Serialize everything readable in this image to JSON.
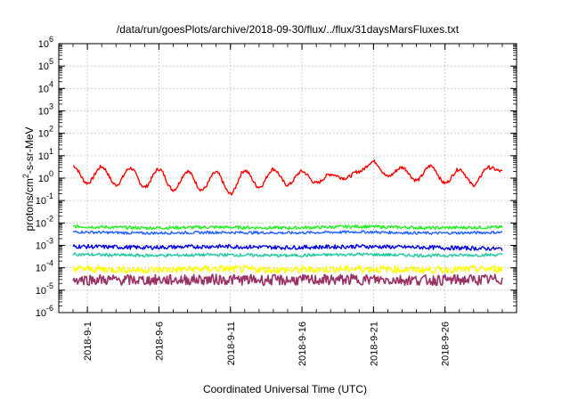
{
  "chart_data": {
    "type": "line",
    "title": "/data/run/goesPlots/archive/2018-09-30/flux/../flux/31daysMarsFluxes.txt",
    "xlabel": "Coordinated Universal Time (UTC)",
    "ylabel": "protons/cm²-s-sr-MeV",
    "ylabel_parts": {
      "pre": "protons/cm",
      "sup": "2",
      "post": "-s-sr-MeV"
    },
    "y_scale": "log",
    "ylim": [
      1e-06,
      1000000.0
    ],
    "y_ticks": [
      {
        "base": "10",
        "exp": "-6",
        "value": 1e-06
      },
      {
        "base": "10",
        "exp": "-5",
        "value": 1e-05
      },
      {
        "base": "10",
        "exp": "-4",
        "value": 0.0001
      },
      {
        "base": "10",
        "exp": "-3",
        "value": 0.001
      },
      {
        "base": "10",
        "exp": "-2",
        "value": 0.01
      },
      {
        "base": "10",
        "exp": "-1",
        "value": 0.1
      },
      {
        "base": "10",
        "exp": "0",
        "value": 1
      },
      {
        "base": "10",
        "exp": "1",
        "value": 10
      },
      {
        "base": "10",
        "exp": "2",
        "value": 100
      },
      {
        "base": "10",
        "exp": "3",
        "value": 1000
      },
      {
        "base": "10",
        "exp": "4",
        "value": 10000
      },
      {
        "base": "10",
        "exp": "5",
        "value": 100000
      },
      {
        "base": "10",
        "exp": "6",
        "value": 1000000
      }
    ],
    "xlim": [
      "2018-08-30",
      "2018-10-01"
    ],
    "x_ticks": [
      "2018-9-1",
      "2018-9-6",
      "2018-9-11",
      "2018-9-16",
      "2018-9-21",
      "2018-9-26"
    ],
    "x_tick_dates": [
      "2018-09-01",
      "2018-09-06",
      "2018-09-11",
      "2018-09-16",
      "2018-09-21",
      "2018-09-26"
    ],
    "grid": true,
    "legend": "none",
    "colors": {
      "red": "#ff0000",
      "green": "#22ee22",
      "blue": "#2060ff",
      "navy": "#0000dd",
      "teal": "#20c8a0",
      "yellow": "#ffff00",
      "purple": "#993366"
    },
    "series": [
      {
        "color": "red",
        "x": [
          "2018-08-31",
          "2018-09-01",
          "2018-09-02",
          "2018-09-03",
          "2018-09-04",
          "2018-09-05",
          "2018-09-06",
          "2018-09-07",
          "2018-09-08",
          "2018-09-09",
          "2018-09-10",
          "2018-09-11",
          "2018-09-12",
          "2018-09-13",
          "2018-09-14",
          "2018-09-15",
          "2018-09-16",
          "2018-09-17",
          "2018-09-18",
          "2018-09-19",
          "2018-09-20",
          "2018-09-21",
          "2018-09-22",
          "2018-09-23",
          "2018-09-24",
          "2018-09-25",
          "2018-09-26",
          "2018-09-27",
          "2018-09-28",
          "2018-09-29",
          "2018-09-30"
        ],
        "values": [
          3.5,
          0.6,
          3.2,
          0.5,
          2.8,
          0.4,
          2.5,
          0.3,
          2.0,
          0.3,
          1.8,
          0.2,
          2.2,
          0.4,
          2.5,
          0.5,
          2.0,
          0.6,
          1.5,
          1.0,
          2.0,
          5.5,
          1.2,
          3.0,
          0.8,
          3.5,
          0.6,
          2.5,
          0.5,
          3.0,
          2.0
        ]
      },
      {
        "color": "green",
        "x": [
          "2018-08-31",
          "2018-09-05",
          "2018-09-10",
          "2018-09-15",
          "2018-09-20",
          "2018-09-25",
          "2018-09-30"
        ],
        "values": [
          0.007,
          0.006,
          0.0065,
          0.006,
          0.007,
          0.006,
          0.0065
        ]
      },
      {
        "color": "blue",
        "x": [
          "2018-08-31",
          "2018-09-05",
          "2018-09-10",
          "2018-09-15",
          "2018-09-20",
          "2018-09-25",
          "2018-09-30"
        ],
        "values": [
          0.004,
          0.0035,
          0.0038,
          0.0036,
          0.004,
          0.0035,
          0.0038
        ]
      },
      {
        "color": "navy",
        "x": [
          "2018-08-31",
          "2018-09-05",
          "2018-09-10",
          "2018-09-15",
          "2018-09-20",
          "2018-09-25",
          "2018-09-30"
        ],
        "values": [
          0.0009,
          0.0008,
          0.0009,
          0.0008,
          0.0009,
          0.0008,
          0.0007
        ]
      },
      {
        "color": "teal",
        "x": [
          "2018-08-31",
          "2018-09-05",
          "2018-09-10",
          "2018-09-15",
          "2018-09-20",
          "2018-09-25",
          "2018-09-30"
        ],
        "values": [
          0.0004,
          0.00035,
          0.00038,
          0.00035,
          0.0004,
          0.00035,
          0.00038
        ]
      },
      {
        "color": "yellow",
        "x": [
          "2018-08-31",
          "2018-09-05",
          "2018-09-10",
          "2018-09-15",
          "2018-09-20",
          "2018-09-25",
          "2018-09-30"
        ],
        "values": [
          9e-05,
          8e-05,
          9e-05,
          8e-05,
          9e-05,
          8e-05,
          9e-05
        ]
      },
      {
        "color": "purple",
        "x": [
          "2018-08-31",
          "2018-09-05",
          "2018-09-10",
          "2018-09-15",
          "2018-09-20",
          "2018-09-25",
          "2018-09-30"
        ],
        "values": [
          3e-05,
          2.8e-05,
          3e-05,
          2.8e-05,
          3e-05,
          2.8e-05,
          3e-05
        ]
      }
    ]
  }
}
